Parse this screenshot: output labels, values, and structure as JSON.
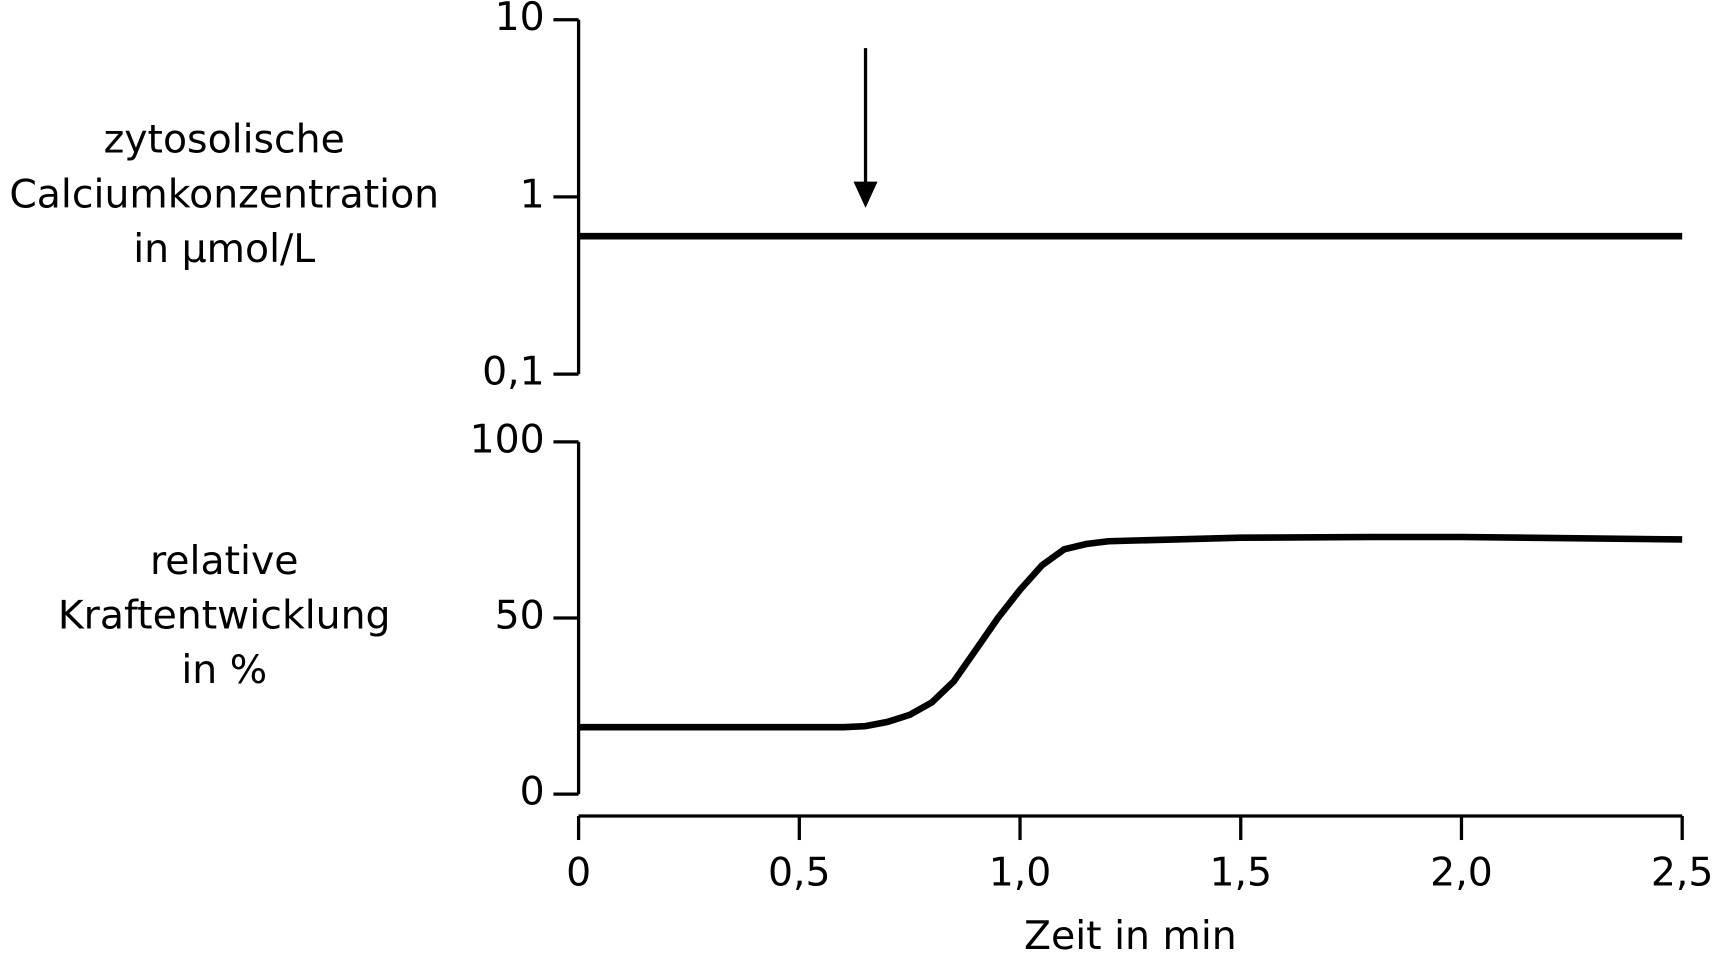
{
  "chart_data": [
    {
      "type": "line",
      "ylabel": [
        "zytosolische",
        "Calciumkonzentration",
        "in µmol/L"
      ],
      "log_y": true,
      "ylim": [
        0.1,
        10
      ],
      "yticks": [
        {
          "value": 0.1,
          "label": "0,1"
        },
        1,
        10
      ],
      "xlim": [
        0,
        2.5
      ],
      "x": [
        0,
        2.5
      ],
      "values": [
        0.6,
        0.6
      ],
      "color": "#000000",
      "arrow_x": 0.65
    },
    {
      "type": "line",
      "ylabel": [
        "relative",
        "Kraftentwicklung",
        "in %"
      ],
      "log_y": false,
      "ylim": [
        0,
        100
      ],
      "yticks": [
        0,
        50,
        100
      ],
      "xlim": [
        0,
        2.5
      ],
      "xticks": [
        0,
        {
          "value": 0.5,
          "label": "0,5"
        },
        {
          "value": 1.0,
          "label": "1,0"
        },
        {
          "value": 1.5,
          "label": "1,5"
        },
        {
          "value": 2.0,
          "label": "2,0"
        },
        {
          "value": 2.5,
          "label": "2,5"
        }
      ],
      "xlabel": "Zeit in min",
      "x": [
        0,
        0.6,
        0.65,
        0.7,
        0.75,
        0.8,
        0.85,
        0.9,
        0.95,
        1.0,
        1.05,
        1.1,
        1.15,
        1.2,
        1.5,
        1.8,
        2.0,
        2.5
      ],
      "values": [
        19,
        19,
        19.3,
        20.5,
        22.5,
        26,
        32,
        41,
        50,
        58,
        65,
        69.5,
        71,
        71.8,
        72.8,
        73,
        73,
        72.3
      ],
      "color": "#000000"
    }
  ]
}
